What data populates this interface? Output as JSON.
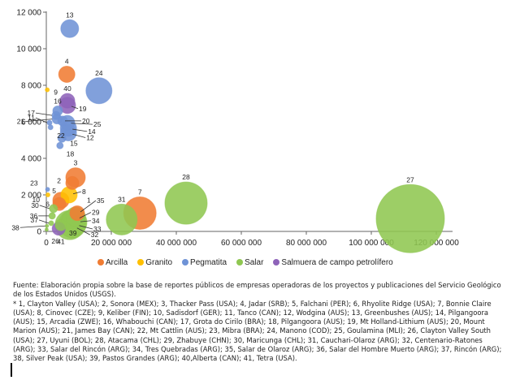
{
  "chart_data": {
    "type": "bubble",
    "title": "",
    "xlabel": "",
    "ylabel": "",
    "xlim": [
      0,
      125000000
    ],
    "ylim": [
      0,
      12000
    ],
    "x_ticks": [
      0,
      20000000,
      40000000,
      60000000,
      80000000,
      100000000,
      120000000
    ],
    "x_tick_labels": [
      "0",
      "20 000 000",
      "40 000 000",
      "60 000 000",
      "80 000 000",
      "100 000 000",
      "120 000 000"
    ],
    "y_ticks": [
      0,
      2000,
      4000,
      6000,
      8000,
      10000,
      12000
    ],
    "y_tick_labels": [
      "0",
      "2 000",
      "4 000",
      "6 000",
      "8 000",
      "10 000",
      "12 000"
    ],
    "grid": false,
    "legend_position": "bottom",
    "categories": [
      {
        "name": "Arcilla",
        "color": "#f07c33"
      },
      {
        "name": "Granito",
        "color": "#ffc000"
      },
      {
        "name": "Pegmatita",
        "color": "#6f93d6"
      },
      {
        "name": "Salar",
        "color": "#8fc751"
      },
      {
        "name": "Salmuera de campo petrolífero",
        "color": "#8e63b9"
      }
    ],
    "points": [
      {
        "id": "13",
        "cat": "Pegmatita",
        "x": 7200000,
        "y": 11100,
        "size": 11
      },
      {
        "id": "4",
        "cat": "Arcilla",
        "x": 6300000,
        "y": 8600,
        "size": 10
      },
      {
        "id": "24",
        "cat": "Pegmatita",
        "x": 16200000,
        "y": 7700,
        "size": 16
      },
      {
        "id": "9",
        "cat": "Granito",
        "x": 300000,
        "y": 7750,
        "size": 2.5
      },
      {
        "id": "40",
        "cat": "Salmuera de campo petrolífero",
        "x": 6500000,
        "y": 7150,
        "size": 9
      },
      {
        "id": "19",
        "cat": "Salmuera de campo petrolífero",
        "x": 6500000,
        "y": 6900,
        "size": 10
      },
      {
        "id": "16",
        "cat": "Pegmatita",
        "x": 3500000,
        "y": 6600,
        "size": 6
      },
      {
        "id": "17",
        "cat": "Pegmatita",
        "x": 3000000,
        "y": 6350,
        "size": 5
      },
      {
        "id": "21",
        "cat": "Pegmatita",
        "x": 3300000,
        "y": 6150,
        "size": 6
      },
      {
        "id": "20",
        "cat": "Pegmatita",
        "x": 5000000,
        "y": 6050,
        "size": 6
      },
      {
        "id": "11",
        "cat": "Pegmatita",
        "x": 1000000,
        "y": 5950,
        "size": 3
      },
      {
        "id": "25",
        "cat": "Pegmatita",
        "x": 6500000,
        "y": 5950,
        "size": 9
      },
      {
        "id": "14",
        "cat": "Pegmatita",
        "x": 6800000,
        "y": 5650,
        "size": 10
      },
      {
        "id": "22",
        "cat": "Pegmatita",
        "x": 1300000,
        "y": 5700,
        "size": 3
      },
      {
        "id": "12",
        "cat": "Pegmatita",
        "x": 6800000,
        "y": 5400,
        "size": 10
      },
      {
        "id": "15",
        "cat": "Pegmatita",
        "x": 4800000,
        "y": 5100,
        "size": 5
      },
      {
        "id": "18",
        "cat": "Pegmatita",
        "x": 4200000,
        "y": 4700,
        "size": 4
      },
      {
        "id": "3",
        "cat": "Arcilla",
        "x": 9000000,
        "y": 2950,
        "size": 12
      },
      {
        "id": "2",
        "cat": "Arcilla",
        "x": 8000000,
        "y": 2650,
        "size": 8
      },
      {
        "id": "23",
        "cat": "Pegmatita",
        "x": 400000,
        "y": 2300,
        "size": 2.5
      },
      {
        "id": "5",
        "cat": "Arcilla",
        "x": 4500000,
        "y": 1700,
        "size": 10
      },
      {
        "id": "8",
        "cat": "Granito",
        "x": 7000000,
        "y": 2000,
        "size": 10
      },
      {
        "id": "10",
        "cat": "Granito",
        "x": 500000,
        "y": 2000,
        "size": 2.5
      },
      {
        "id": "6",
        "cat": "Arcilla",
        "x": 4000000,
        "y": 1500,
        "size": 8
      },
      {
        "id": "7",
        "cat": "Arcilla",
        "x": 28800000,
        "y": 1000,
        "size": 20
      },
      {
        "id": "31",
        "cat": "Salar",
        "x": 23200000,
        "y": 650,
        "size": 19
      },
      {
        "id": "28",
        "cat": "Salar",
        "x": 43000000,
        "y": 1550,
        "size": 26
      },
      {
        "id": "27",
        "cat": "Salar",
        "x": 112000000,
        "y": 700,
        "size": 42
      },
      {
        "id": "30",
        "cat": "Salar",
        "x": 2200000,
        "y": 1250,
        "size": 5
      },
      {
        "id": "36",
        "cat": "Salar",
        "x": 1800000,
        "y": 850,
        "size": 4
      },
      {
        "id": "37",
        "cat": "Salar",
        "x": 1500000,
        "y": 450,
        "size": 3
      },
      {
        "id": "38",
        "cat": "Salar",
        "x": 200000,
        "y": 300,
        "size": 2
      },
      {
        "id": "1",
        "cat": "Arcilla",
        "x": 9500000,
        "y": 1000,
        "size": 9
      },
      {
        "id": "35",
        "cat": "Salar",
        "x": 9000000,
        "y": 800,
        "size": 12
      },
      {
        "id": "29",
        "cat": "Salar",
        "x": 8500000,
        "y": 600,
        "size": 14
      },
      {
        "id": "34",
        "cat": "Salar",
        "x": 8500000,
        "y": 500,
        "size": 16
      },
      {
        "id": "33",
        "cat": "Salar",
        "x": 8000000,
        "y": 400,
        "size": 17
      },
      {
        "id": "32",
        "cat": "Salar",
        "x": 7200000,
        "y": 350,
        "size": 18
      },
      {
        "id": "26",
        "cat": "Salar",
        "x": 100000,
        "y": 100,
        "size": 2
      },
      {
        "id": "41",
        "cat": "Salmuera de campo petrolífero",
        "x": 3800000,
        "y": 150,
        "size": 8
      },
      {
        "id": "39",
        "cat": "Salar",
        "x": 4500000,
        "y": 350,
        "size": 7
      }
    ]
  },
  "notes": {
    "source": "Fuente: Elaboración propia sobre la base de reportes públicos de empresas operadoras de los proyectos y publicaciones del Servicio Geológico de los Estados Unidos (USGS).",
    "footnote": "* 1, Clayton Valley (USA); 2, Sonora (MEX); 3, Thacker Pass (USA); 4, Jadar (SRB); 5, Falchani (PER); 6, Rhyolite Ridge (USA); 7, Bonnie Claire (USA); 8, Cinovec (CZE); 9, Keliber (FIN); 10, Sadisdorf (GER); 11, Tanco (CAN); 12, Wodgina (AUS); 13, Greenbushes (AUS); 14, Pilgangoora (AUS); 15, Arcadia (ZWE); 16, Whabouchi (CAN); 17, Grota do Cirilo (BRA); 18, Pilgangoora (AUS); 19, Mt Holland-Lithium (AUS); 20, Mount Marion (AUS); 21, James Bay (CAN); 22, Mt Cattlin (AUS); 23, Mibra (BRA); 24, Manono (COD); 25, Goulamina (MLI); 26, Clayton Valley South (USA); 27, Uyuni (BOL); 28, Atacama (CHL); 29, Zhabuye (CHN); 30, Maricunga (CHL); 31, Cauchari-Olaroz (ARG); 32, Centenario-Ratones (ARG); 33, Salar del Rincón (ARG); 34, Tres Quebradas (ARG); 35, Salar de Olaroz (ARG); 36, Salar del Hombre Muerto (ARG); 37, Rincón (ARG); 38, Silver Peak (USA); 39, Pastos Grandes (ARG); 40,Alberta (CAN); 41, Tetra (USA)."
  }
}
